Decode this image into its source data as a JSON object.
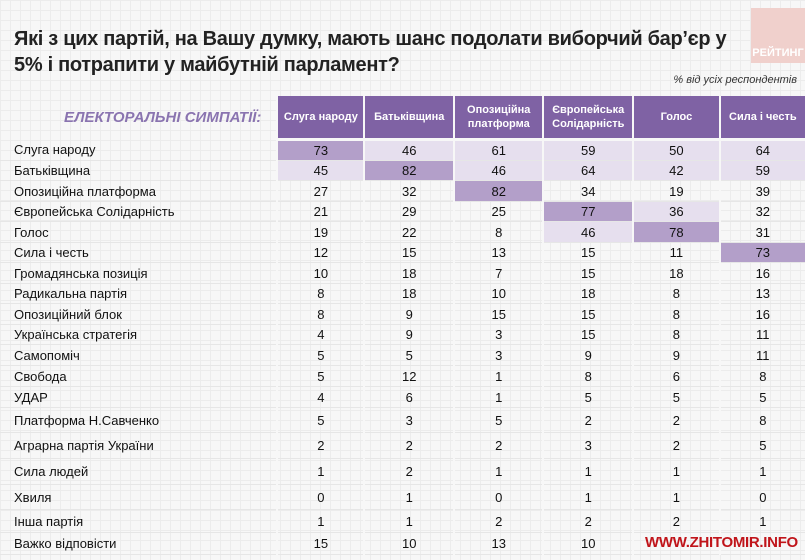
{
  "title": "Які з цих партій, на Вашу думку, мають шанс подолати виборчий бар’єр у 5% і потрапити у майбутній парламент?",
  "logo": "РЕЙТИНГ",
  "note": "% від усіх респондентів",
  "section_label": "ЕЛЕКТОРАЛЬНІ СИМПАТІЇ:",
  "watermark": "WWW.ZHITOMIR.INFO",
  "colors": {
    "header": "#7f62a4",
    "strong": "#b39fc9",
    "light": "#e6dfee",
    "section": "#8a74b0"
  },
  "chart_data": {
    "type": "table",
    "title": "Які з цих партій, на Вашу думку, мають шанс подолати виборчий бар’єр у 5% і потрапити у майбутній парламент?",
    "columns": [
      "Слуга народу",
      "Батьківщина",
      "Опозиційна платформа",
      "Європейська Солідарність",
      "Голос",
      "Сила і честь"
    ],
    "rows": [
      {
        "label": "Слуга народу",
        "values": [
          73,
          46,
          61,
          59,
          50,
          64
        ],
        "hl": [
          "strong",
          "light",
          "light",
          "light",
          "light",
          "light"
        ]
      },
      {
        "label": "Батьківщина",
        "values": [
          45,
          82,
          46,
          64,
          42,
          59
        ],
        "hl": [
          "light",
          "strong",
          "light",
          "light",
          "light",
          "light"
        ]
      },
      {
        "label": "Опозиційна платформа",
        "values": [
          27,
          32,
          82,
          34,
          19,
          39
        ],
        "hl": [
          "",
          "",
          "strong",
          "",
          "",
          ""
        ]
      },
      {
        "label": "Європейська Солідарність",
        "values": [
          21,
          29,
          25,
          77,
          36,
          32
        ],
        "hl": [
          "",
          "",
          "",
          "strong",
          "light",
          ""
        ]
      },
      {
        "label": "Голос",
        "values": [
          19,
          22,
          8,
          46,
          78,
          31
        ],
        "hl": [
          "",
          "",
          "",
          "light",
          "strong",
          ""
        ]
      },
      {
        "label": "Сила і честь",
        "values": [
          12,
          15,
          13,
          15,
          11,
          73
        ],
        "hl": [
          "",
          "",
          "",
          "",
          "",
          "strong"
        ]
      },
      {
        "label": "Громадянська позиція",
        "values": [
          10,
          18,
          7,
          15,
          18,
          16
        ]
      },
      {
        "label": "Радикальна партія",
        "values": [
          8,
          18,
          10,
          18,
          8,
          13
        ]
      },
      {
        "label": "Опозиційний блок",
        "values": [
          8,
          9,
          15,
          15,
          8,
          16
        ]
      },
      {
        "label": "Українська стратегія",
        "values": [
          4,
          9,
          3,
          15,
          8,
          11
        ]
      },
      {
        "label": "Самопоміч",
        "values": [
          5,
          5,
          3,
          9,
          9,
          11
        ]
      },
      {
        "label": "Свобода",
        "values": [
          5,
          12,
          1,
          8,
          6,
          8
        ]
      },
      {
        "label": "УДАР",
        "values": [
          4,
          6,
          1,
          5,
          5,
          5
        ]
      },
      {
        "label": "Платформа Н.Савченко",
        "values": [
          5,
          3,
          5,
          2,
          2,
          8
        ]
      },
      {
        "label": "Аграрна партія України",
        "values": [
          2,
          2,
          2,
          3,
          2,
          5
        ]
      },
      {
        "label": "Сила людей",
        "values": [
          1,
          2,
          1,
          1,
          1,
          1
        ]
      },
      {
        "label": "Хвиля",
        "values": [
          0,
          1,
          0,
          1,
          1,
          0
        ]
      },
      {
        "label": "Інша партія",
        "values": [
          1,
          1,
          2,
          2,
          2,
          1
        ]
      },
      {
        "label": "Важко відповісти",
        "values": [
          15,
          10,
          13,
          10,
          null,
          null
        ]
      }
    ]
  }
}
